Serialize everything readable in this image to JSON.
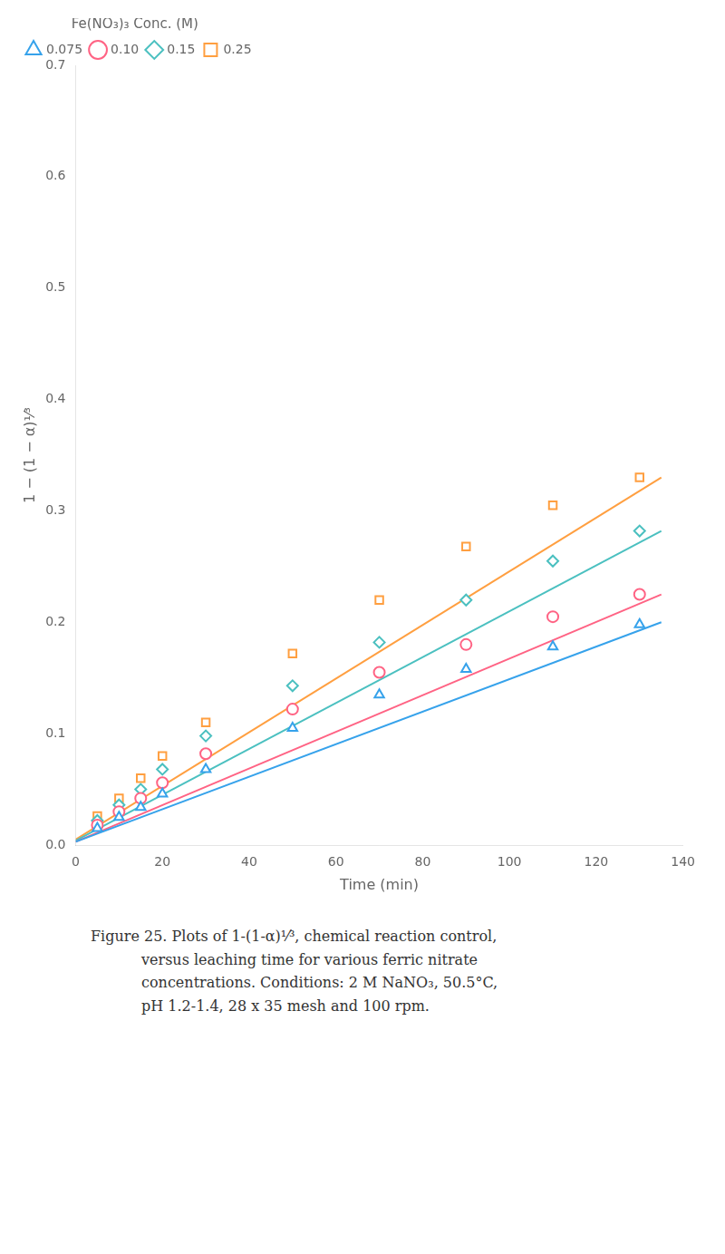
{
  "chart_data": {
    "type": "scatter",
    "x_label": "Time (min)",
    "y_label": "1 − (1 − α)¹⁄³",
    "xlim": [
      0,
      140
    ],
    "ylim": [
      0,
      0.7
    ],
    "xticks": [
      0,
      20,
      40,
      60,
      80,
      100,
      120,
      140
    ],
    "yticks": [
      {
        "value": 0.0,
        "label": "0.0"
      },
      0.1,
      0.2,
      0.3,
      0.4,
      0.5,
      0.6,
      0.7
    ],
    "grid": false,
    "legend": "upper left",
    "legend_title": "Fe(NO₃)₃ Conc. (M)",
    "annotations": [
      "Figure 25.  Plots of 1-(1-α)¹⁄³, chemical reaction control,",
      "versus leaching time for various ferric nitrate",
      "concentrations.  Conditions:  2 M NaNO₃, 50.5°C,",
      "pH 1.2-1.4, 28 x 35 mesh and 100 rpm."
    ],
    "series": [
      {
        "name": "0.075",
        "marker": "triangle",
        "color": "#36a2eb",
        "x": [
          5,
          10,
          15,
          20,
          30,
          50,
          70,
          90,
          110,
          130
        ],
        "values": [
          0.015,
          0.025,
          0.034,
          0.046,
          0.068,
          0.105,
          0.135,
          0.158,
          0.178,
          0.198
        ],
        "fit": {
          "x": [
            0,
            135
          ],
          "values": [
            0.003,
            0.2
          ]
        }
      },
      {
        "name": "0.10",
        "marker": "circle_dot",
        "color": "#ff6384",
        "x": [
          5,
          10,
          15,
          20,
          30,
          50,
          70,
          90,
          110,
          130
        ],
        "values": [
          0.018,
          0.03,
          0.042,
          0.056,
          0.082,
          0.122,
          0.155,
          0.18,
          0.205,
          0.225
        ],
        "fit": {
          "x": [
            0,
            135
          ],
          "values": [
            0.003,
            0.225
          ]
        }
      },
      {
        "name": "0.15",
        "marker": "diamond_dot",
        "color": "#4bc0c0",
        "x": [
          5,
          10,
          15,
          20,
          30,
          50,
          70,
          90,
          110,
          130
        ],
        "values": [
          0.022,
          0.036,
          0.05,
          0.068,
          0.098,
          0.143,
          0.182,
          0.22,
          0.255,
          0.282
        ],
        "fit": {
          "x": [
            0,
            135
          ],
          "values": [
            0.004,
            0.282
          ]
        }
      },
      {
        "name": "0.25",
        "marker": "square_dot",
        "color": "#ff9f40",
        "x": [
          5,
          10,
          15,
          20,
          30,
          50,
          70,
          90,
          110,
          130
        ],
        "values": [
          0.026,
          0.042,
          0.06,
          0.08,
          0.11,
          0.172,
          0.22,
          0.268,
          0.305,
          0.33
        ],
        "fit": {
          "x": [
            0,
            135
          ],
          "values": [
            0.005,
            0.33
          ]
        }
      }
    ]
  }
}
